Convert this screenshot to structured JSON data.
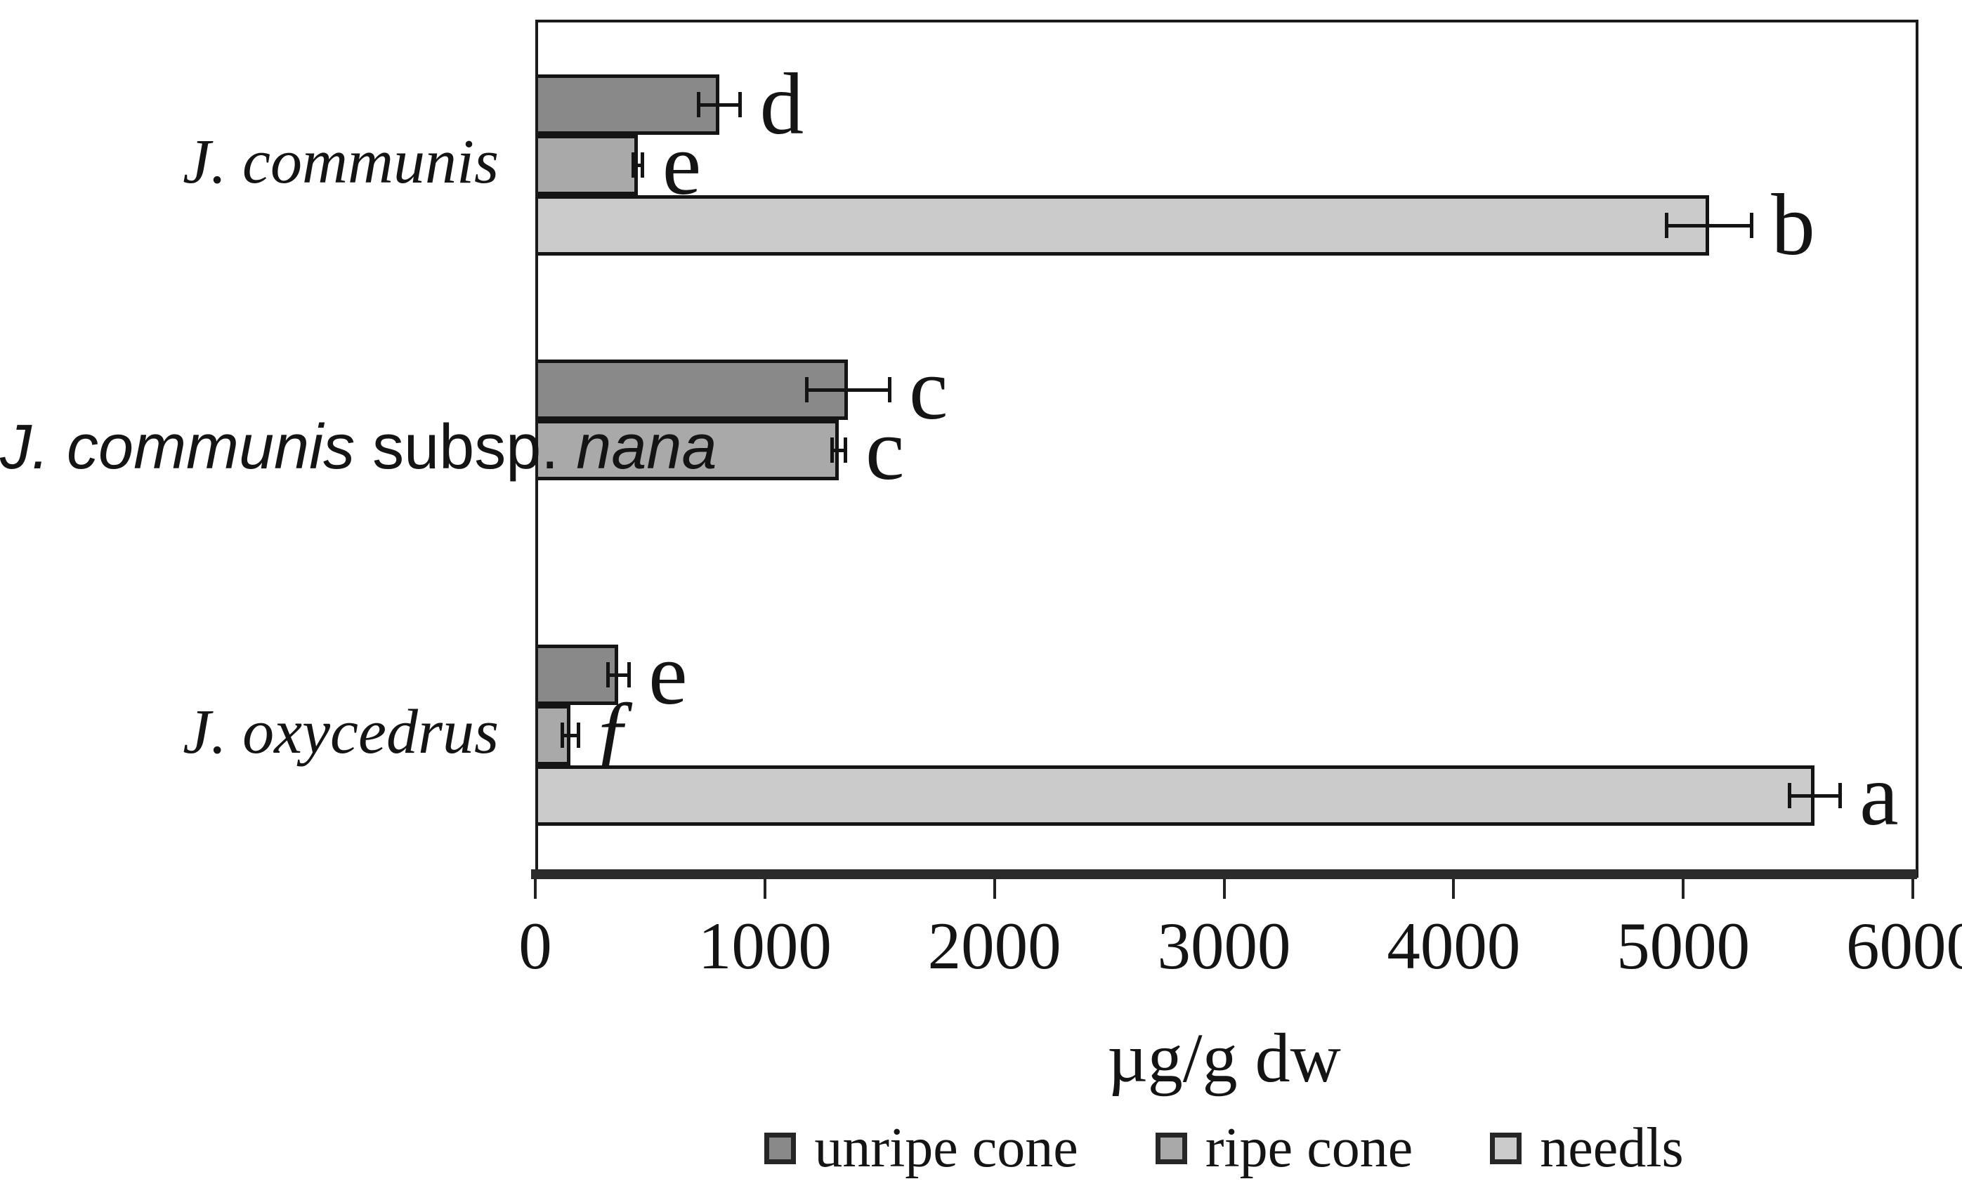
{
  "chart_data": {
    "type": "bar",
    "orientation": "horizontal",
    "title": "",
    "xlabel": "µg/g dw",
    "ylabel": "",
    "xlim": [
      0,
      6000
    ],
    "xticks": [
      0,
      1000,
      2000,
      3000,
      4000,
      5000,
      6000
    ],
    "grid": false,
    "legend_position": "bottom",
    "categories": [
      {
        "name": "J. communis",
        "parts": [
          {
            "t": "J. communis",
            "i": true,
            "f": "serif"
          }
        ]
      },
      {
        "name": "J. communis subsp. nana",
        "parts": [
          {
            "t": "J. communis",
            "i": true,
            "f": "sans"
          },
          {
            "t": " subsp. ",
            "i": false,
            "f": "sans"
          },
          {
            "t": "nana",
            "i": true,
            "f": "sans"
          }
        ]
      },
      {
        "name": "J. oxycedrus",
        "parts": [
          {
            "t": "J. oxycedrus",
            "i": true,
            "f": "serif"
          }
        ]
      }
    ],
    "series": [
      {
        "name": "unripe cone",
        "color": "#898989",
        "values": [
          790,
          1350,
          350
        ],
        "errors": [
          90,
          180,
          45
        ],
        "sig_letters": [
          "d",
          "c",
          "e"
        ]
      },
      {
        "name": "ripe cone",
        "color": "#a9a9a9",
        "values": [
          435,
          1310,
          140
        ],
        "errors": [
          20,
          30,
          35
        ],
        "sig_letters": [
          "e",
          "c",
          "f"
        ]
      },
      {
        "name": "needls",
        "color": "#cbcbcb",
        "values": [
          5100,
          null,
          5560
        ],
        "errors": [
          185,
          null,
          110
        ],
        "sig_letters": [
          "b",
          null,
          "a"
        ]
      }
    ],
    "italic_letters": [
      "f"
    ],
    "bar_border_color": "#141414",
    "error_bar_color": "#141414",
    "axis_color": "#2b2b2b",
    "letter_color": "#141414"
  }
}
